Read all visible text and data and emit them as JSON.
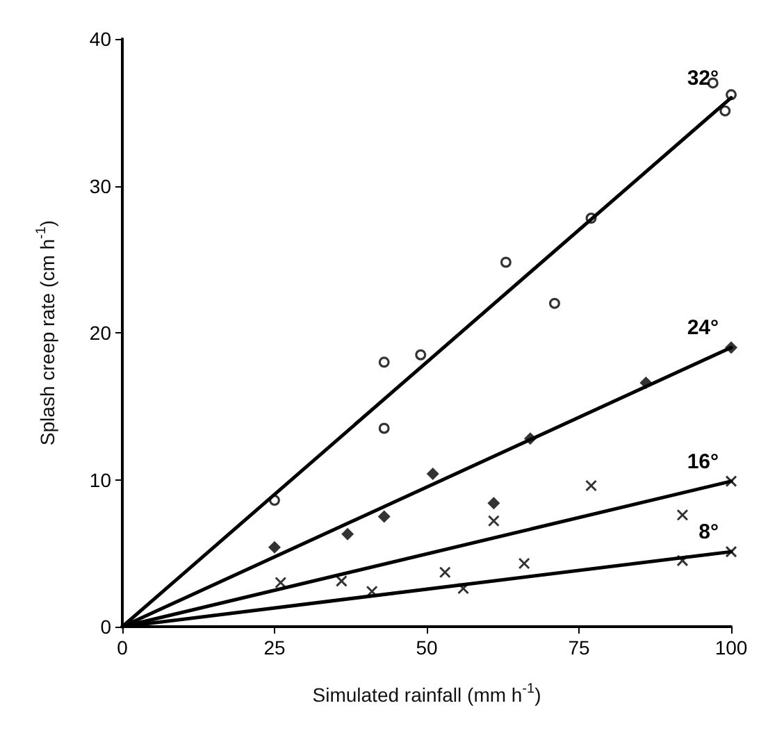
{
  "chart_data": {
    "type": "scatter",
    "xlabel": "Simulated rainfall (mm h$^{-1}$)",
    "ylabel": "Splash creep rate (cm h$^{-1}$)",
    "xlim": [
      0,
      100
    ],
    "xticks": [
      0,
      25,
      50,
      75,
      100
    ],
    "ylim": [
      0,
      40
    ],
    "yticks": [
      0,
      10,
      20,
      30,
      40
    ],
    "grid": false,
    "legend": false,
    "series": [
      {
        "marker": "circle",
        "color": "#000000",
        "x": [
          25,
          43,
          43,
          49,
          63,
          71,
          77,
          97,
          100,
          99
        ],
        "values": [
          8.6,
          18,
          13.5,
          18.5,
          24.8,
          22,
          27.8,
          37,
          36.2,
          35.1
        ]
      },
      {
        "marker": "diamond",
        "color": "#000000",
        "x": [
          25,
          37,
          43,
          51,
          61,
          67,
          86,
          100
        ],
        "values": [
          5.4,
          6.3,
          7.5,
          10.4,
          8.4,
          12.8,
          16.6,
          19
        ]
      },
      {
        "marker": "cross",
        "color": "#000000",
        "x": [
          26,
          36,
          53,
          61,
          77,
          92,
          100
        ],
        "values": [
          3,
          3.1,
          3.7,
          7.2,
          9.6,
          7.6,
          9.9
        ]
      },
      {
        "marker": "cross",
        "color": "#000000",
        "x": [
          41,
          56,
          66,
          92,
          100
        ],
        "values": [
          2.4,
          2.6,
          4.3,
          4.5,
          5.1
        ]
      },
      {
        "type": "line",
        "name": "32°",
        "line_style": "solid",
        "color": "#000000",
        "x": [
          0,
          100
        ],
        "values": [
          0,
          36
        ]
      },
      {
        "type": "line",
        "name": "24°",
        "line_style": "solid",
        "color": "#000000",
        "x": [
          0,
          100
        ],
        "values": [
          0,
          19
        ]
      },
      {
        "type": "line",
        "name": "16°",
        "line_style": "solid",
        "color": "#000000",
        "x": [
          0,
          100
        ],
        "values": [
          0,
          9.9
        ]
      },
      {
        "type": "line",
        "name": "8°",
        "line_style": "solid",
        "color": "#000000",
        "x": [
          0,
          100
        ],
        "values": [
          0,
          5.1
        ]
      }
    ]
  }
}
